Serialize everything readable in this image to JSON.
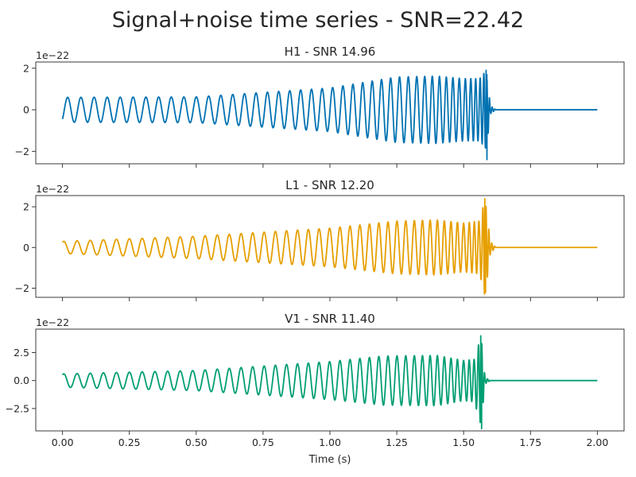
{
  "chart_data": {
    "type": "line",
    "title": "Signal+noise time series - SNR=22.42",
    "xlabel": "Time (s)",
    "xlim": [
      -0.1,
      2.1
    ],
    "xticks": [
      0.0,
      0.25,
      0.5,
      0.75,
      1.0,
      1.25,
      1.5,
      1.75,
      2.0
    ],
    "xtick_labels": [
      "0.00",
      "0.25",
      "0.50",
      "0.75",
      "1.00",
      "1.25",
      "1.50",
      "1.75",
      "2.00"
    ],
    "offset_label": "1e−22",
    "grid": false,
    "panels": [
      {
        "name": "H1",
        "title": "H1 - SNR 14.96",
        "color": "#0072b2",
        "ylim": [
          -2.6,
          2.3
        ],
        "yticks": [
          -2,
          0,
          2
        ],
        "ytick_labels": [
          "−2",
          "0",
          "2"
        ],
        "series": {
          "amplitude_envelope": [
            [
              0.0,
              0.6
            ],
            [
              0.5,
              0.62
            ],
            [
              1.0,
              1.05
            ],
            [
              1.25,
              1.58
            ],
            [
              1.4,
              1.62
            ],
            [
              1.5,
              1.5
            ],
            [
              1.56,
              1.5
            ],
            [
              1.585,
              1.9
            ],
            [
              1.6,
              0.2
            ],
            [
              1.62,
              0.0
            ],
            [
              2.0,
              0.0
            ]
          ],
          "frequency_hz": [
            [
              0.0,
              20.0
            ],
            [
              0.5,
              21.5
            ],
            [
              1.0,
              25.5
            ],
            [
              1.3,
              31.0
            ],
            [
              1.5,
              44.0
            ],
            [
              1.56,
              62.0
            ],
            [
              1.59,
              100.0
            ]
          ],
          "merger_time_s": 1.59,
          "peak_values": [
            1.9,
            -2.4
          ],
          "initial_value": -0.45
        }
      },
      {
        "name": "L1",
        "title": "L1 - SNR 12.20",
        "color": "#e69f00",
        "ylim": [
          -2.45,
          2.55
        ],
        "yticks": [
          -2,
          0,
          2
        ],
        "ytick_labels": [
          "−2",
          "0",
          "2"
        ],
        "series": {
          "amplitude_envelope": [
            [
              0.0,
              0.3
            ],
            [
              0.5,
              0.55
            ],
            [
              1.0,
              0.95
            ],
            [
              1.25,
              1.3
            ],
            [
              1.4,
              1.35
            ],
            [
              1.5,
              1.2
            ],
            [
              1.56,
              1.3
            ],
            [
              1.58,
              2.4
            ],
            [
              1.6,
              0.3
            ],
            [
              1.62,
              0.0
            ],
            [
              2.0,
              0.0
            ]
          ],
          "frequency_hz": [
            [
              0.0,
              20.0
            ],
            [
              0.5,
              21.5
            ],
            [
              1.0,
              25.5
            ],
            [
              1.3,
              31.0
            ],
            [
              1.5,
              44.0
            ],
            [
              1.56,
              62.0
            ],
            [
              1.59,
              100.0
            ]
          ],
          "merger_time_s": 1.585,
          "peak_values": [
            2.4,
            -2.2
          ],
          "initial_value": 0.25
        }
      },
      {
        "name": "V1",
        "title": "V1 - SNR 11.40",
        "color": "#009e73",
        "ylim": [
          -4.5,
          4.6
        ],
        "yticks": [
          -2.5,
          0.0,
          2.5
        ],
        "ytick_labels": [
          "−2.5",
          "0.0",
          "2.5"
        ],
        "series": {
          "amplitude_envelope": [
            [
              0.0,
              0.6
            ],
            [
              0.5,
              0.9
            ],
            [
              1.0,
              1.7
            ],
            [
              1.2,
              2.2
            ],
            [
              1.4,
              2.25
            ],
            [
              1.5,
              1.8
            ],
            [
              1.54,
              1.9
            ],
            [
              1.565,
              4.0
            ],
            [
              1.58,
              0.3
            ],
            [
              1.6,
              0.0
            ],
            [
              2.0,
              0.0
            ]
          ],
          "frequency_hz": [
            [
              0.0,
              20.0
            ],
            [
              0.5,
              21.5
            ],
            [
              1.0,
              25.5
            ],
            [
              1.3,
              31.0
            ],
            [
              1.5,
              44.0
            ],
            [
              1.55,
              62.0
            ],
            [
              1.575,
              100.0
            ]
          ],
          "merger_time_s": 1.57,
          "peak_values": [
            4.0,
            -4.3
          ],
          "initial_value": 0.5
        }
      }
    ]
  }
}
